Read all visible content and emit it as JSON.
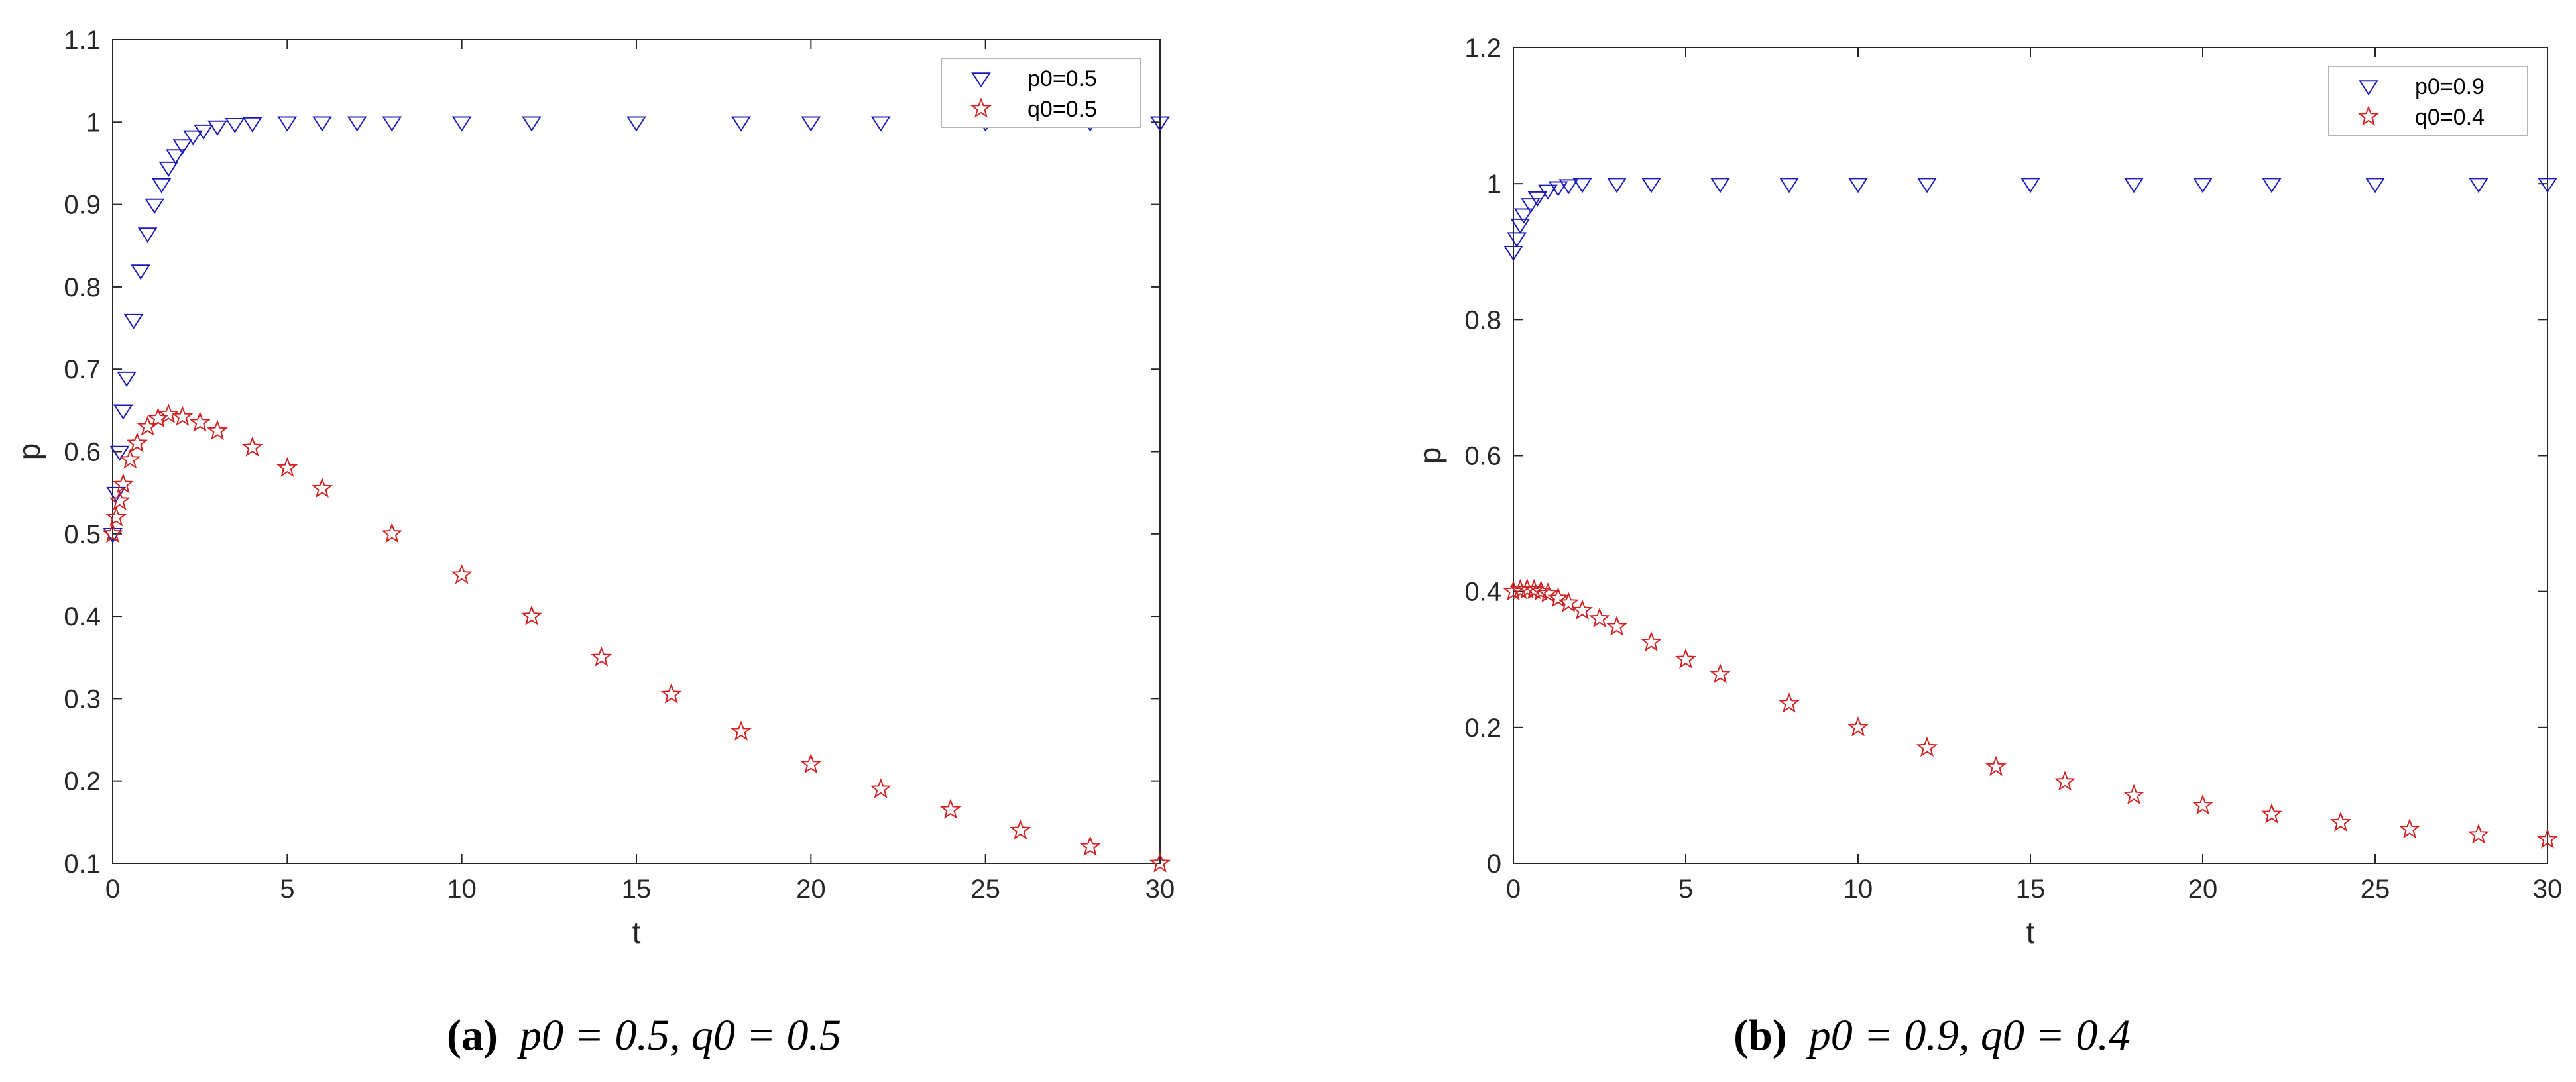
{
  "colors": {
    "blue": "#1a1ab8",
    "red": "#d42020",
    "axis": "#262626"
  },
  "chart_data": [
    {
      "type": "scatter",
      "xlabel": "t",
      "ylabel": "p",
      "xlim": [
        0,
        30
      ],
      "ylim": [
        0.1,
        1.1
      ],
      "xticks": [
        "0",
        "5",
        "10",
        "15",
        "20",
        "25",
        "30"
      ],
      "yticks": [
        "0.1",
        "0.2",
        "0.3",
        "0.4",
        "0.5",
        "0.6",
        "0.7",
        "0.8",
        "0.9",
        "1",
        "1.1"
      ],
      "legend_position": "top-right",
      "series": [
        {
          "name": "p0=0.5",
          "marker": "triangle-down",
          "color": "#1a1ab8",
          "x": [
            0,
            0.1,
            0.2,
            0.3,
            0.4,
            0.6,
            0.8,
            1.0,
            1.2,
            1.4,
            1.6,
            1.8,
            2.0,
            2.3,
            2.6,
            3.0,
            3.5,
            4,
            5,
            6,
            7,
            8,
            10,
            12,
            15,
            18,
            20,
            22,
            25,
            28,
            30
          ],
          "y": [
            0.5,
            0.55,
            0.6,
            0.65,
            0.69,
            0.76,
            0.82,
            0.865,
            0.9,
            0.925,
            0.945,
            0.96,
            0.972,
            0.983,
            0.99,
            0.995,
            0.998,
            0.999,
            1.0,
            1.0,
            1.0,
            1.0,
            1.0,
            1.0,
            1.0,
            1.0,
            1.0,
            1.0,
            1.0,
            1.0,
            1.0
          ]
        },
        {
          "name": "q0=0.5",
          "marker": "star",
          "color": "#d42020",
          "x": [
            0,
            0.1,
            0.2,
            0.3,
            0.5,
            0.7,
            1.0,
            1.3,
            1.6,
            2.0,
            2.5,
            3,
            4,
            5,
            6,
            8,
            10,
            12,
            14,
            16,
            18,
            20,
            22,
            24,
            26,
            28,
            30
          ],
          "y": [
            0.5,
            0.52,
            0.54,
            0.56,
            0.59,
            0.61,
            0.63,
            0.64,
            0.645,
            0.642,
            0.635,
            0.625,
            0.605,
            0.58,
            0.555,
            0.5,
            0.45,
            0.4,
            0.35,
            0.305,
            0.26,
            0.22,
            0.19,
            0.165,
            0.14,
            0.12,
            0.1
          ]
        }
      ]
    },
    {
      "type": "scatter",
      "xlabel": "t",
      "ylabel": "p",
      "xlim": [
        0,
        30
      ],
      "ylim": [
        0,
        1.2
      ],
      "xticks": [
        "0",
        "5",
        "10",
        "15",
        "20",
        "25",
        "30"
      ],
      "yticks": [
        "0",
        "0.2",
        "0.4",
        "0.6",
        "0.8",
        "1",
        "1.2"
      ],
      "legend_position": "top-right",
      "series": [
        {
          "name": "p0=0.9",
          "marker": "triangle-down",
          "color": "#1a1ab8",
          "x": [
            0,
            0.1,
            0.2,
            0.3,
            0.5,
            0.7,
            1.0,
            1.3,
            1.6,
            2.0,
            3,
            4,
            6,
            8,
            10,
            12,
            15,
            18,
            20,
            22,
            25,
            28,
            30
          ],
          "y": [
            0.9,
            0.92,
            0.94,
            0.955,
            0.97,
            0.98,
            0.99,
            0.995,
            0.998,
            1.0,
            1.0,
            1.0,
            1.0,
            1.0,
            1.0,
            1.0,
            1.0,
            1.0,
            1.0,
            1.0,
            1.0,
            1.0,
            1.0
          ]
        },
        {
          "name": "q0=0.4",
          "marker": "star",
          "color": "#d42020",
          "x": [
            0,
            0.2,
            0.4,
            0.6,
            0.8,
            1.0,
            1.3,
            1.6,
            2.0,
            2.5,
            3,
            4,
            5,
            6,
            8,
            10,
            12,
            14,
            16,
            18,
            20,
            22,
            24,
            26,
            28,
            30
          ],
          "y": [
            0.4,
            0.402,
            0.403,
            0.402,
            0.4,
            0.397,
            0.39,
            0.383,
            0.372,
            0.36,
            0.348,
            0.325,
            0.3,
            0.278,
            0.235,
            0.2,
            0.17,
            0.142,
            0.12,
            0.1,
            0.085,
            0.072,
            0.06,
            0.05,
            0.042,
            0.035
          ]
        }
      ]
    }
  ],
  "captions": [
    {
      "label": "(a)",
      "text": "p0 = 0.5, q0 = 0.5"
    },
    {
      "label": "(b)",
      "text": "p0 = 0.9, q0 = 0.4"
    }
  ]
}
